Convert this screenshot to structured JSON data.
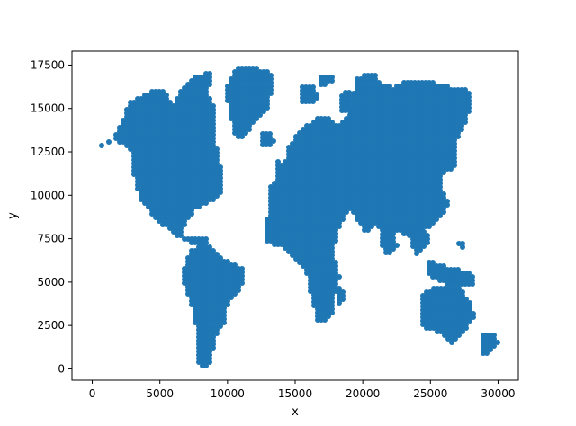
{
  "chart_data": {
    "type": "scatter",
    "title": "",
    "xlabel": "x",
    "ylabel": "y",
    "xlim": [
      -1500,
      31500
    ],
    "ylim": [
      -650,
      18300
    ],
    "grid": false,
    "xticks": [
      0,
      5000,
      10000,
      15000,
      20000,
      25000,
      30000
    ],
    "yticks": [
      0,
      2500,
      5000,
      7500,
      10000,
      12500,
      15000,
      17500
    ],
    "xtick_labels": [
      "0",
      "5000",
      "10000",
      "15000",
      "20000",
      "25000",
      "30000"
    ],
    "ytick_labels": [
      "0",
      "2500",
      "5000",
      "7500",
      "10000",
      "12500",
      "15000",
      "17500"
    ],
    "series": [
      {
        "color": "#1f77b4",
        "marker_size": 6,
        "regions": [
          {
            "polygon": [
              [
                200,
                12700
              ],
              [
                1500,
                13100
              ],
              [
                2800,
                15400
              ],
              [
                4400,
                16000
              ],
              [
                5300,
                16000
              ],
              [
                6000,
                15300
              ],
              [
                6600,
                16100
              ],
              [
                7200,
                16700
              ],
              [
                8800,
                17200
              ],
              [
                8600,
                15800
              ],
              [
                9200,
                15000
              ],
              [
                9000,
                13400
              ],
              [
                9500,
                11700
              ],
              [
                9700,
                10500
              ],
              [
                9300,
                9800
              ],
              [
                8600,
                9600
              ],
              [
                7600,
                9200
              ],
              [
                7200,
                8700
              ],
              [
                7000,
                8400
              ],
              [
                6500,
                8000
              ],
              [
                6900,
                7600
              ],
              [
                8200,
                7600
              ],
              [
                8600,
                7400
              ],
              [
                8300,
                7000
              ],
              [
                7300,
                7200
              ],
              [
                6500,
                7500
              ],
              [
                5800,
                7900
              ],
              [
                4800,
                8600
              ],
              [
                3600,
                9600
              ],
              [
                3100,
                11100
              ],
              [
                2900,
                12500
              ],
              [
                1600,
                13300
              ],
              [
                200,
                12700
              ]
            ]
          },
          {
            "polygon": [
              [
                7300,
                6900
              ],
              [
                8400,
                7200
              ],
              [
                9300,
                6700
              ],
              [
                10000,
                6200
              ],
              [
                11200,
                5800
              ],
              [
                11300,
                5200
              ],
              [
                10900,
                4600
              ],
              [
                10000,
                3600
              ],
              [
                9800,
                2700
              ],
              [
                9000,
                1600
              ],
              [
                8900,
                800
              ],
              [
                8700,
                200
              ],
              [
                8300,
                100
              ],
              [
                7800,
                300
              ],
              [
                7800,
                1500
              ],
              [
                7600,
                2700
              ],
              [
                7300,
                3800
              ],
              [
                6900,
                4700
              ],
              [
                6600,
                5500
              ],
              [
                7000,
                6200
              ],
              [
                7300,
                6900
              ]
            ]
          },
          {
            "polygon": [
              [
                9800,
                16000
              ],
              [
                10800,
                17500
              ],
              [
                12000,
                17400
              ],
              [
                13200,
                17100
              ],
              [
                13300,
                16200
              ],
              [
                12900,
                14800
              ],
              [
                12100,
                14300
              ],
              [
                11600,
                13700
              ],
              [
                10900,
                13200
              ],
              [
                10400,
                13700
              ],
              [
                10100,
                15000
              ],
              [
                9800,
                16000
              ]
            ]
          },
          {
            "polygon": [
              [
                12600,
                13700
              ],
              [
                13300,
                13500
              ],
              [
                13500,
                13000
              ],
              [
                12800,
                12700
              ],
              [
                12400,
                13000
              ],
              [
                12600,
                13700
              ]
            ]
          },
          {
            "polygon": [
              [
                15300,
                16400
              ],
              [
                16400,
                16400
              ],
              [
                16700,
                15700
              ],
              [
                16200,
                15200
              ],
              [
                15400,
                15400
              ],
              [
                15300,
                16400
              ]
            ]
          },
          {
            "polygon": [
              [
                16700,
                16900
              ],
              [
                17800,
                17000
              ],
              [
                18000,
                16500
              ],
              [
                16800,
                16300
              ],
              [
                16700,
                16900
              ]
            ]
          },
          {
            "polygon": [
              [
                18400,
                15800
              ],
              [
                19000,
                16100
              ],
              [
                19200,
                15200
              ],
              [
                18600,
                14600
              ],
              [
                18200,
                14900
              ],
              [
                18400,
                15800
              ]
            ]
          },
          {
            "polygon": [
              [
                13000,
                10300
              ],
              [
                13700,
                11000
              ],
              [
                13500,
                12000
              ],
              [
                14200,
                11800
              ],
              [
                14500,
                12800
              ],
              [
                15400,
                13800
              ],
              [
                16300,
                14300
              ],
              [
                17200,
                14600
              ],
              [
                18100,
                14000
              ],
              [
                18900,
                14700
              ],
              [
                19600,
                16800
              ],
              [
                20700,
                17100
              ],
              [
                21400,
                16500
              ],
              [
                22300,
                16200
              ],
              [
                23100,
                16600
              ],
              [
                24000,
                16500
              ],
              [
                25200,
                16500
              ],
              [
                26800,
                16200
              ],
              [
                27800,
                16100
              ],
              [
                28100,
                15300
              ],
              [
                27700,
                14300
              ],
              [
                27000,
                13300
              ],
              [
                27000,
                11800
              ],
              [
                26600,
                11400
              ],
              [
                25800,
                11200
              ],
              [
                25800,
                10400
              ],
              [
                26400,
                9400
              ],
              [
                25600,
                8600
              ],
              [
                25000,
                8200
              ],
              [
                24400,
                8000
              ],
              [
                23600,
                7600
              ],
              [
                22700,
                7900
              ],
              [
                21900,
                7500
              ],
              [
                21000,
                8300
              ],
              [
                20200,
                7900
              ],
              [
                19600,
                8600
              ],
              [
                19000,
                9100
              ],
              [
                18300,
                8300
              ],
              [
                17800,
                6600
              ],
              [
                18300,
                5400
              ],
              [
                18000,
                4400
              ],
              [
                17700,
                3100
              ],
              [
                17100,
                2600
              ],
              [
                16600,
                2800
              ],
              [
                16300,
                3800
              ],
              [
                16000,
                4900
              ],
              [
                15700,
                5800
              ],
              [
                15000,
                6300
              ],
              [
                14300,
                6900
              ],
              [
                13600,
                7100
              ],
              [
                12800,
                7400
              ],
              [
                12700,
                8100
              ],
              [
                13000,
                8900
              ],
              [
                13000,
                10300
              ]
            ]
          },
          {
            "polygon": [
              [
                18300,
                4800
              ],
              [
                18700,
                4400
              ],
              [
                18400,
                3500
              ],
              [
                18000,
                3800
              ],
              [
                18300,
                4800
              ]
            ]
          },
          {
            "polygon": [
              [
                21200,
                7700
              ],
              [
                22100,
                7900
              ],
              [
                22600,
                7000
              ],
              [
                21600,
                6500
              ],
              [
                21200,
                7700
              ]
            ]
          },
          {
            "polygon": [
              [
                23200,
                7900
              ],
              [
                24600,
                8100
              ],
              [
                25000,
                7300
              ],
              [
                24000,
                6600
              ],
              [
                23200,
                7900
              ]
            ]
          },
          {
            "polygon": [
              [
                24700,
                6300
              ],
              [
                26200,
                5900
              ],
              [
                27700,
                5600
              ],
              [
                28300,
                5300
              ],
              [
                28400,
                4900
              ],
              [
                27400,
                4700
              ],
              [
                26100,
                4900
              ],
              [
                24800,
                5400
              ],
              [
                24700,
                6300
              ]
            ]
          },
          {
            "polygon": [
              [
                24400,
                4300
              ],
              [
                25400,
                4700
              ],
              [
                26400,
                4800
              ],
              [
                27300,
                4600
              ],
              [
                28000,
                3700
              ],
              [
                28300,
                3000
              ],
              [
                27400,
                2100
              ],
              [
                26700,
                1400
              ],
              [
                25700,
                2100
              ],
              [
                24800,
                2200
              ],
              [
                24200,
                2700
              ],
              [
                24400,
                4300
              ]
            ]
          },
          {
            "polygon": [
              [
                28700,
                2000
              ],
              [
                29700,
                2100
              ],
              [
                30100,
                1500
              ],
              [
                29300,
                800
              ],
              [
                28700,
                800
              ],
              [
                28700,
                2000
              ]
            ]
          },
          {
            "polygon": [
              [
                26900,
                7400
              ],
              [
                27500,
                7400
              ],
              [
                27400,
                7000
              ],
              [
                26900,
                7100
              ],
              [
                26900,
                7400
              ]
            ]
          }
        ]
      }
    ]
  }
}
